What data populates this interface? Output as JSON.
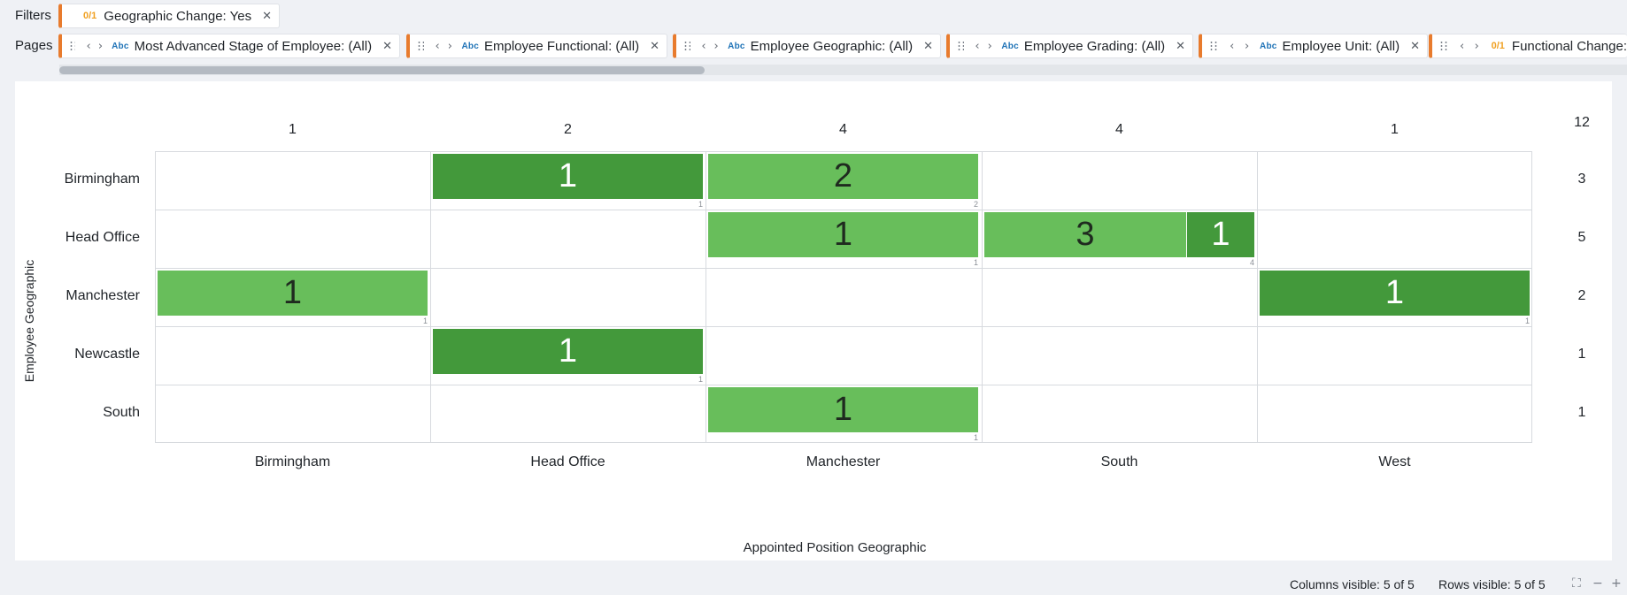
{
  "filters_bar": {
    "label": "Filters",
    "pills": [
      {
        "type_badge": "0/1",
        "text": "Geographic Change: Yes"
      }
    ]
  },
  "pages_bar": {
    "label": "Pages",
    "pills": [
      {
        "type_badge": "Abc",
        "text": "Most Advanced Stage of Employee: (All)"
      },
      {
        "type_badge": "Abc",
        "text": "Employee Functional: (All)"
      },
      {
        "type_badge": "Abc",
        "text": "Employee Geographic: (All)"
      },
      {
        "type_badge": "Abc",
        "text": "Employee Grading: (All)"
      },
      {
        "type_badge": "Abc",
        "text": "Employee Unit: (All)"
      },
      {
        "type_badge": "0/1",
        "text": "Functional Change: "
      }
    ]
  },
  "icons": {
    "grip": "drag-handle-icon",
    "prev": "chevron-left-icon",
    "next": "chevron-right-icon",
    "close": "close-icon",
    "fullscreen": "fullscreen-icon",
    "zoom_out": "zoom-out-icon",
    "zoom_in": "zoom-in-icon"
  },
  "colors": {
    "accent": "#e87b2d",
    "cell_light": "#68be5b",
    "cell_dark": "#43993b",
    "abc_badge": "#1f73b7",
    "bool_badge": "#f0a021"
  },
  "crosstab": {
    "x_axis_title": "Appointed Position Geographic",
    "y_axis_title": "Employee Geographic",
    "columns": [
      "Birmingham",
      "Head Office",
      "Manchester",
      "South",
      "West"
    ],
    "column_totals": [
      "1",
      "2",
      "4",
      "4",
      "1"
    ],
    "grand_total": "12",
    "rows": [
      "Birmingham",
      "Head Office",
      "Manchester",
      "Newcastle",
      "South"
    ],
    "row_totals": [
      "3",
      "5",
      "2",
      "1",
      "1"
    ],
    "cells": [
      {
        "row": 0,
        "col": 1,
        "segments": [
          {
            "value": "1",
            "shade": "dark"
          }
        ],
        "corner": "1"
      },
      {
        "row": 0,
        "col": 2,
        "segments": [
          {
            "value": "2",
            "shade": "light"
          }
        ],
        "corner": "2"
      },
      {
        "row": 1,
        "col": 2,
        "segments": [
          {
            "value": "1",
            "shade": "light"
          }
        ],
        "corner": "1"
      },
      {
        "row": 1,
        "col": 3,
        "segments": [
          {
            "value": "3",
            "shade": "light"
          },
          {
            "value": "1",
            "shade": "dark"
          }
        ],
        "corner": "4"
      },
      {
        "row": 2,
        "col": 0,
        "segments": [
          {
            "value": "1",
            "shade": "light"
          }
        ],
        "corner": "1"
      },
      {
        "row": 2,
        "col": 4,
        "segments": [
          {
            "value": "1",
            "shade": "dark"
          }
        ],
        "corner": "1"
      },
      {
        "row": 3,
        "col": 1,
        "segments": [
          {
            "value": "1",
            "shade": "dark"
          }
        ],
        "corner": "1"
      },
      {
        "row": 4,
        "col": 2,
        "segments": [
          {
            "value": "1",
            "shade": "light"
          }
        ],
        "corner": "1"
      }
    ]
  },
  "status_bar": {
    "columns_visible": "Columns visible: 5 of 5",
    "rows_visible": "Rows visible: 5 of 5"
  }
}
